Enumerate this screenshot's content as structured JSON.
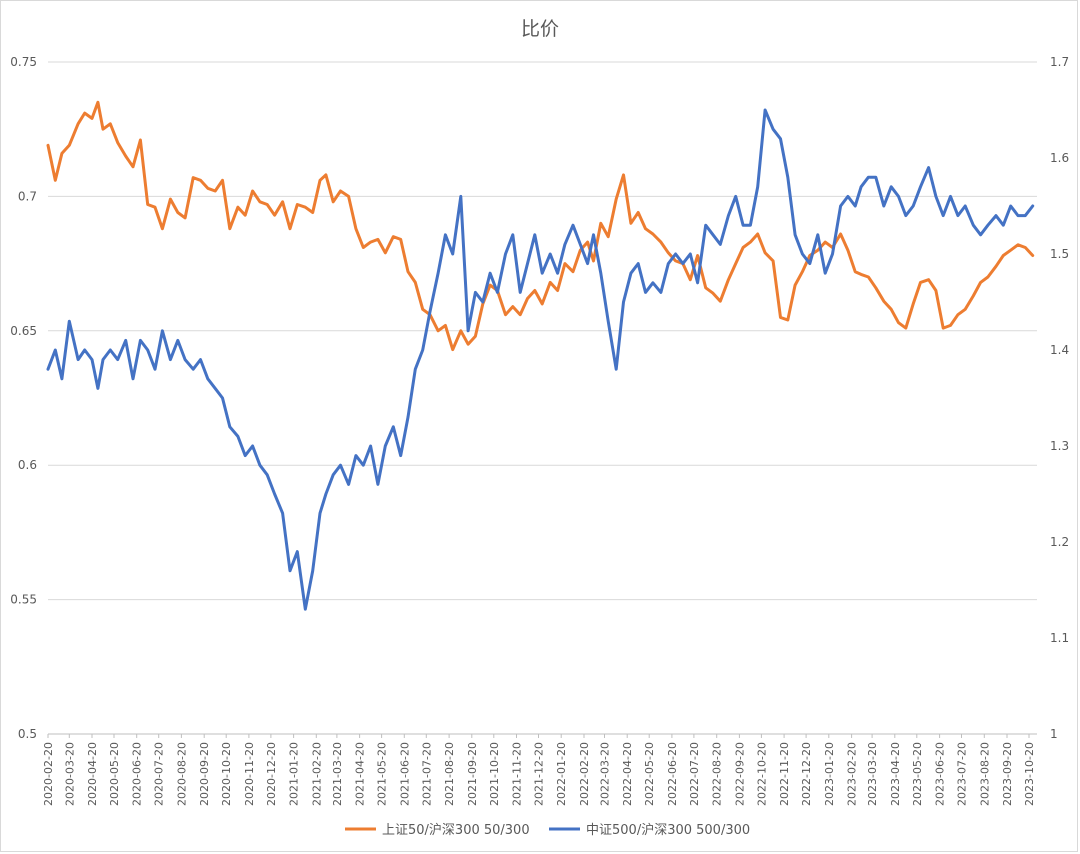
{
  "chart_data": {
    "type": "line",
    "title": "比价",
    "left_axis": {
      "ylim": [
        0.5,
        0.75
      ],
      "ticks": [
        0.5,
        0.55,
        0.6,
        0.65,
        0.7,
        0.75
      ],
      "tick_labels": [
        "0.5",
        "0.55",
        "0.6",
        "0.65",
        "0.7",
        "0.75"
      ]
    },
    "right_axis": {
      "ylim": [
        1.0,
        1.7
      ],
      "ticks": [
        1.0,
        1.1,
        1.2,
        1.3,
        1.4,
        1.5,
        1.6,
        1.7
      ],
      "tick_labels": [
        "1",
        "1.1",
        "1.2",
        "1.3",
        "1.4",
        "1.5",
        "1.6",
        "1.7"
      ]
    },
    "x_tick_labels": [
      "2020-02-20",
      "2020-03-20",
      "2020-04-20",
      "2020-05-20",
      "2020-06-20",
      "2020-07-20",
      "2020-08-20",
      "2020-09-20",
      "2020-10-20",
      "2020-11-20",
      "2020-12-20",
      "2021-01-20",
      "2021-02-20",
      "2021-03-20",
      "2021-04-20",
      "2021-05-20",
      "2021-06-20",
      "2021-07-20",
      "2021-08-20",
      "2021-09-20",
      "2021-10-20",
      "2021-11-20",
      "2021-12-20",
      "2022-01-20",
      "2022-02-20",
      "2022-03-20",
      "2022-04-20",
      "2022-05-20",
      "2022-06-20",
      "2022-07-20",
      "2022-08-20",
      "2022-09-20",
      "2022-10-20",
      "2022-11-20",
      "2022-12-20",
      "2023-01-20",
      "2023-02-20",
      "2023-03-20",
      "2023-04-20",
      "2023-05-20",
      "2023-06-20",
      "2023-07-20",
      "2023-08-20",
      "2023-09-20",
      "2023-10-20"
    ],
    "grid": true,
    "legend": "bottom",
    "series": [
      {
        "name": "上证50/沪深300 50/300",
        "axis": "left",
        "color": "#ed7d31",
        "x": [
          "2020-02-20",
          "2020-03-01",
          "2020-03-10",
          "2020-03-20",
          "2020-04-01",
          "2020-04-10",
          "2020-04-20",
          "2020-04-28",
          "2020-05-05",
          "2020-05-15",
          "2020-05-25",
          "2020-06-05",
          "2020-06-15",
          "2020-06-25",
          "2020-07-05",
          "2020-07-15",
          "2020-07-25",
          "2020-08-05",
          "2020-08-15",
          "2020-08-25",
          "2020-09-05",
          "2020-09-15",
          "2020-09-25",
          "2020-10-05",
          "2020-10-15",
          "2020-10-25",
          "2020-11-05",
          "2020-11-15",
          "2020-11-25",
          "2020-12-05",
          "2020-12-15",
          "2020-12-25",
          "2021-01-05",
          "2021-01-15",
          "2021-01-25",
          "2021-02-05",
          "2021-02-15",
          "2021-02-25",
          "2021-03-05",
          "2021-03-15",
          "2021-03-25",
          "2021-04-05",
          "2021-04-15",
          "2021-04-25",
          "2021-05-05",
          "2021-05-15",
          "2021-05-25",
          "2021-06-05",
          "2021-06-15",
          "2021-06-25",
          "2021-07-05",
          "2021-07-15",
          "2021-07-25",
          "2021-08-05",
          "2021-08-15",
          "2021-08-25",
          "2021-09-05",
          "2021-09-15",
          "2021-09-25",
          "2021-10-05",
          "2021-10-15",
          "2021-10-25",
          "2021-11-05",
          "2021-11-15",
          "2021-11-25",
          "2021-12-05",
          "2021-12-15",
          "2021-12-25",
          "2022-01-05",
          "2022-01-15",
          "2022-01-25",
          "2022-02-05",
          "2022-02-15",
          "2022-02-25",
          "2022-03-05",
          "2022-03-15",
          "2022-03-25",
          "2022-04-05",
          "2022-04-15",
          "2022-04-25",
          "2022-05-05",
          "2022-05-15",
          "2022-05-25",
          "2022-06-05",
          "2022-06-15",
          "2022-06-25",
          "2022-07-05",
          "2022-07-15",
          "2022-07-25",
          "2022-08-05",
          "2022-08-15",
          "2022-08-25",
          "2022-09-05",
          "2022-09-15",
          "2022-09-25",
          "2022-10-05",
          "2022-10-15",
          "2022-10-25",
          "2022-11-05",
          "2022-11-15",
          "2022-11-25",
          "2022-12-05",
          "2022-12-15",
          "2022-12-25",
          "2023-01-05",
          "2023-01-15",
          "2023-01-25",
          "2023-02-05",
          "2023-02-15",
          "2023-02-25",
          "2023-03-05",
          "2023-03-15",
          "2023-03-25",
          "2023-04-05",
          "2023-04-15",
          "2023-04-25",
          "2023-05-05",
          "2023-05-15",
          "2023-05-25",
          "2023-06-05",
          "2023-06-15",
          "2023-06-25",
          "2023-07-05",
          "2023-07-15",
          "2023-07-25",
          "2023-08-05",
          "2023-08-15",
          "2023-08-25",
          "2023-09-05",
          "2023-09-15",
          "2023-09-25",
          "2023-10-05",
          "2023-10-15",
          "2023-10-25"
        ],
        "values": [
          0.719,
          0.706,
          0.716,
          0.719,
          0.727,
          0.731,
          0.729,
          0.735,
          0.725,
          0.727,
          0.72,
          0.715,
          0.711,
          0.721,
          0.697,
          0.696,
          0.688,
          0.699,
          0.694,
          0.692,
          0.707,
          0.706,
          0.703,
          0.702,
          0.706,
          0.688,
          0.696,
          0.693,
          0.702,
          0.698,
          0.697,
          0.693,
          0.698,
          0.688,
          0.697,
          0.696,
          0.694,
          0.706,
          0.708,
          0.698,
          0.702,
          0.7,
          0.688,
          0.681,
          0.683,
          0.684,
          0.679,
          0.685,
          0.684,
          0.672,
          0.668,
          0.658,
          0.656,
          0.65,
          0.652,
          0.643,
          0.65,
          0.645,
          0.648,
          0.66,
          0.667,
          0.665,
          0.656,
          0.659,
          0.656,
          0.662,
          0.665,
          0.66,
          0.668,
          0.665,
          0.675,
          0.672,
          0.68,
          0.683,
          0.676,
          0.69,
          0.685,
          0.699,
          0.708,
          0.69,
          0.694,
          0.688,
          0.686,
          0.683,
          0.679,
          0.676,
          0.675,
          0.669,
          0.678,
          0.666,
          0.664,
          0.661,
          0.669,
          0.675,
          0.681,
          0.683,
          0.686,
          0.679,
          0.676,
          0.655,
          0.654,
          0.667,
          0.672,
          0.678,
          0.68,
          0.683,
          0.681,
          0.686,
          0.68,
          0.672,
          0.671,
          0.67,
          0.666,
          0.661,
          0.658,
          0.653,
          0.651,
          0.66,
          0.668,
          0.669,
          0.665,
          0.651,
          0.652,
          0.656,
          0.658,
          0.663,
          0.668,
          0.67,
          0.674,
          0.678,
          0.68,
          0.682,
          0.681,
          0.678
        ]
      },
      {
        "name": "中证500/沪深300 500/300",
        "axis": "right",
        "color": "#4472c4",
        "x": [
          "2020-02-20",
          "2020-03-01",
          "2020-03-10",
          "2020-03-20",
          "2020-04-01",
          "2020-04-10",
          "2020-04-20",
          "2020-04-28",
          "2020-05-05",
          "2020-05-15",
          "2020-05-25",
          "2020-06-05",
          "2020-06-15",
          "2020-06-25",
          "2020-07-05",
          "2020-07-15",
          "2020-07-25",
          "2020-08-05",
          "2020-08-15",
          "2020-08-25",
          "2020-09-05",
          "2020-09-15",
          "2020-09-25",
          "2020-10-05",
          "2020-10-15",
          "2020-10-25",
          "2020-11-05",
          "2020-11-15",
          "2020-11-25",
          "2020-12-05",
          "2020-12-15",
          "2020-12-25",
          "2021-01-05",
          "2021-01-15",
          "2021-01-25",
          "2021-02-05",
          "2021-02-15",
          "2021-02-25",
          "2021-03-05",
          "2021-03-15",
          "2021-03-25",
          "2021-04-05",
          "2021-04-15",
          "2021-04-25",
          "2021-05-05",
          "2021-05-15",
          "2021-05-25",
          "2021-06-05",
          "2021-06-15",
          "2021-06-25",
          "2021-07-05",
          "2021-07-15",
          "2021-07-25",
          "2021-08-05",
          "2021-08-15",
          "2021-08-25",
          "2021-09-05",
          "2021-09-15",
          "2021-09-25",
          "2021-10-05",
          "2021-10-15",
          "2021-10-25",
          "2021-11-05",
          "2021-11-15",
          "2021-11-25",
          "2021-12-05",
          "2021-12-15",
          "2021-12-25",
          "2022-01-05",
          "2022-01-15",
          "2022-01-25",
          "2022-02-05",
          "2022-02-15",
          "2022-02-25",
          "2022-03-05",
          "2022-03-15",
          "2022-03-25",
          "2022-04-05",
          "2022-04-15",
          "2022-04-25",
          "2022-05-05",
          "2022-05-15",
          "2022-05-25",
          "2022-06-05",
          "2022-06-15",
          "2022-06-25",
          "2022-07-05",
          "2022-07-15",
          "2022-07-25",
          "2022-08-05",
          "2022-08-15",
          "2022-08-25",
          "2022-09-05",
          "2022-09-15",
          "2022-09-25",
          "2022-10-05",
          "2022-10-15",
          "2022-10-25",
          "2022-11-05",
          "2022-11-15",
          "2022-11-25",
          "2022-12-05",
          "2022-12-15",
          "2022-12-25",
          "2023-01-05",
          "2023-01-15",
          "2023-01-25",
          "2023-02-05",
          "2023-02-15",
          "2023-02-25",
          "2023-03-05",
          "2023-03-15",
          "2023-03-25",
          "2023-04-05",
          "2023-04-15",
          "2023-04-25",
          "2023-05-05",
          "2023-05-15",
          "2023-05-25",
          "2023-06-05",
          "2023-06-15",
          "2023-06-25",
          "2023-07-05",
          "2023-07-15",
          "2023-07-25",
          "2023-08-05",
          "2023-08-15",
          "2023-08-25",
          "2023-09-05",
          "2023-09-15",
          "2023-09-25",
          "2023-10-05",
          "2023-10-15",
          "2023-10-25"
        ],
        "values": [
          1.38,
          1.4,
          1.37,
          1.43,
          1.39,
          1.4,
          1.39,
          1.36,
          1.39,
          1.4,
          1.39,
          1.41,
          1.37,
          1.41,
          1.4,
          1.38,
          1.42,
          1.39,
          1.41,
          1.39,
          1.38,
          1.39,
          1.37,
          1.36,
          1.35,
          1.32,
          1.31,
          1.29,
          1.3,
          1.28,
          1.27,
          1.25,
          1.23,
          1.17,
          1.19,
          1.13,
          1.17,
          1.23,
          1.25,
          1.27,
          1.28,
          1.26,
          1.29,
          1.28,
          1.3,
          1.26,
          1.3,
          1.32,
          1.29,
          1.33,
          1.38,
          1.4,
          1.44,
          1.48,
          1.52,
          1.5,
          1.56,
          1.42,
          1.46,
          1.45,
          1.48,
          1.46,
          1.5,
          1.52,
          1.46,
          1.49,
          1.52,
          1.48,
          1.5,
          1.48,
          1.51,
          1.53,
          1.51,
          1.49,
          1.52,
          1.48,
          1.43,
          1.38,
          1.45,
          1.48,
          1.49,
          1.46,
          1.47,
          1.46,
          1.49,
          1.5,
          1.49,
          1.5,
          1.47,
          1.53,
          1.52,
          1.51,
          1.54,
          1.56,
          1.53,
          1.53,
          1.57,
          1.65,
          1.63,
          1.62,
          1.58,
          1.52,
          1.5,
          1.49,
          1.52,
          1.48,
          1.5,
          1.55,
          1.56,
          1.55,
          1.57,
          1.58,
          1.58,
          1.55,
          1.57,
          1.56,
          1.54,
          1.55,
          1.57,
          1.59,
          1.56,
          1.54,
          1.56,
          1.54,
          1.55,
          1.53,
          1.52,
          1.53,
          1.54,
          1.53,
          1.55,
          1.54,
          1.54,
          1.55
        ]
      }
    ]
  }
}
